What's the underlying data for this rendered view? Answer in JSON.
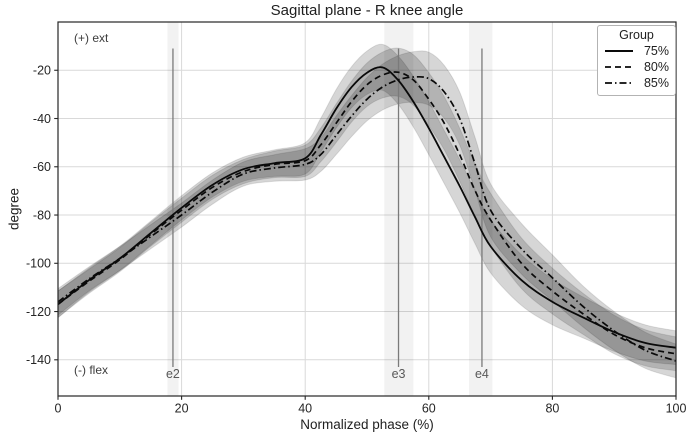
{
  "chart_data": {
    "type": "line",
    "title": "Sagittal plane - R knee angle",
    "xlabel": "Normalized phase (%)",
    "ylabel": "degree",
    "annotations": {
      "top_left": "(+) ext",
      "bottom_left": "(-) flex"
    },
    "legend_title": "Group",
    "legend_position": "upper right",
    "grid": true,
    "xlim": [
      0,
      100
    ],
    "ylim": [
      -155,
      0
    ],
    "xticks": [
      0,
      20,
      40,
      60,
      80,
      100
    ],
    "yticks": [
      -140,
      -120,
      -100,
      -80,
      -60,
      -40,
      -20
    ],
    "x": [
      0,
      5,
      10,
      15,
      20,
      25,
      30,
      35,
      40,
      42.5,
      45,
      47.5,
      50,
      52.5,
      55,
      57.5,
      60,
      62.5,
      65,
      67.5,
      70,
      75,
      80,
      85,
      90,
      95,
      100
    ],
    "series": [
      {
        "name": "75%",
        "line_style": "solid",
        "mean": [
          -117,
          -107,
          -98,
          -87.5,
          -77,
          -67.5,
          -61,
          -58.5,
          -56.5,
          -47,
          -36,
          -27,
          -21,
          -18.8,
          -24,
          -33,
          -44,
          -56,
          -68,
          -81,
          -93,
          -107,
          -116,
          -122.5,
          -128.5,
          -133,
          -135
        ]
      },
      {
        "name": "80%",
        "line_style": "dashed",
        "mean": [
          -117,
          -107.5,
          -98.5,
          -88,
          -78,
          -68.5,
          -62,
          -59,
          -57.5,
          -51,
          -42,
          -33,
          -26,
          -22,
          -20.8,
          -24,
          -32,
          -42,
          -55,
          -70,
          -82,
          -100,
          -111.5,
          -121,
          -129.5,
          -135,
          -137.5
        ]
      },
      {
        "name": "85%",
        "line_style": "dashdot",
        "mean": [
          -116,
          -106.5,
          -98,
          -89,
          -80,
          -70.5,
          -63,
          -60.5,
          -59,
          -55,
          -47,
          -39,
          -32,
          -27,
          -24,
          -22.8,
          -23.5,
          -29,
          -40,
          -59,
          -78,
          -94,
          -106,
          -118,
          -128,
          -136,
          -140.5
        ]
      }
    ],
    "band_halfwidth": [
      5.5,
      5,
      5,
      5,
      5,
      5,
      5,
      5.5,
      6.5,
      7,
      8,
      8.5,
      9,
      9.5,
      10,
      10.5,
      11,
      11,
      11,
      11,
      11,
      10.5,
      9.5,
      8.5,
      8,
      7.5,
      7
    ],
    "events": [
      {
        "label": "e2",
        "x": 18.6,
        "band": [
          17.7,
          19.5
        ]
      },
      {
        "label": "e3",
        "x": 55.1,
        "band": [
          52.8,
          57.5
        ]
      },
      {
        "label": "e4",
        "x": 68.6,
        "band": [
          66.5,
          70.3
        ]
      }
    ],
    "event_line_span": [
      -11,
      -143
    ],
    "event_label_y": -147.5
  },
  "colors": {
    "line": "#0a0a0a",
    "band_fill": "#000000",
    "band_fill_opacity": 0.16,
    "band_edge_opacity": 0.1,
    "grid": "#d9d9d9",
    "spine": "#262626",
    "tick_label": "#262626",
    "event_line": "#7a7a7a",
    "event_label": "#595959",
    "event_band_opacity": 0.05,
    "legend_border": "#b3b3b3"
  }
}
